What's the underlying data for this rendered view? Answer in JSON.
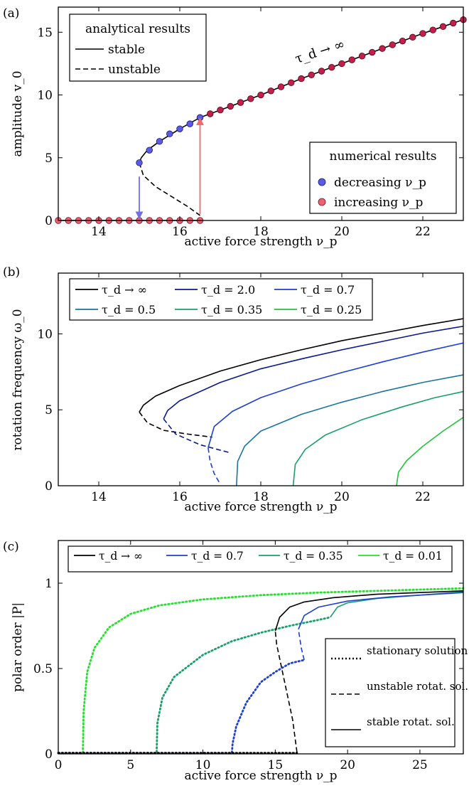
{
  "chart_data": [
    {
      "panel": "(a)",
      "type": "line",
      "xlabel": "active force strength ν_p",
      "ylabel": "amplitude v_0",
      "xlim": [
        13,
        23
      ],
      "ylim": [
        0,
        17
      ],
      "xticks": [
        14,
        16,
        18,
        20,
        22
      ],
      "yticks": [
        0,
        5,
        10,
        15
      ],
      "annotation": "τ_d → ∞",
      "legend_analytical": {
        "title": "analytical results",
        "entries": [
          "stable",
          "unstable"
        ]
      },
      "legend_numerical": {
        "title": "numerical results",
        "entries": [
          "decreasing ν_p",
          "increasing ν_p"
        ]
      },
      "colors": {
        "decreasing": "#5b5bea",
        "increasing": "#dc3c5a",
        "up_arrow": "#f26a6a",
        "down_arrow": "#7070e0"
      },
      "stable_branch": {
        "x": [
          15.0,
          15.05,
          15.2,
          15.5,
          16.0,
          16.5,
          17,
          18,
          19,
          20,
          21,
          22,
          23
        ],
        "y": [
          4.6,
          5.0,
          5.6,
          6.3,
          7.3,
          8.2,
          8.8,
          10.0,
          11.3,
          12.5,
          13.7,
          14.9,
          16.0
        ]
      },
      "unstable_branch": {
        "x": [
          15.0,
          15.1,
          15.4,
          15.8,
          16.2,
          16.5
        ],
        "y": [
          4.6,
          3.6,
          2.7,
          1.9,
          1.1,
          0.4
        ]
      },
      "zero_branch": {
        "x": [
          13.0,
          16.5
        ],
        "y": [
          0,
          0
        ]
      },
      "decreasing_points": {
        "x": [
          15.0,
          15.25,
          15.5,
          15.75,
          16.0,
          16.25,
          16.5
        ],
        "y": [
          4.6,
          5.6,
          6.3,
          6.9,
          7.3,
          7.7,
          8.2
        ]
      },
      "increasing_points_zero": {
        "x": [
          13.0,
          13.25,
          13.5,
          13.75,
          14.0,
          14.25,
          14.5,
          14.75,
          15.0,
          15.25,
          15.5,
          15.75,
          16.0,
          16.25,
          16.5
        ],
        "y": [
          0,
          0,
          0,
          0,
          0,
          0,
          0,
          0,
          0,
          0,
          0,
          0,
          0,
          0,
          0
        ]
      },
      "increasing_points_upper": {
        "x_start": 16.5,
        "x_end": 23.0,
        "step": 0.25
      },
      "arrows": [
        {
          "x": 16.5,
          "from": 0.5,
          "to": 7.9,
          "color": "up_arrow"
        },
        {
          "x": 15.0,
          "from": 3.5,
          "to": 0.4,
          "color": "down_arrow"
        }
      ]
    },
    {
      "panel": "(b)",
      "type": "line",
      "xlabel": "active force strength ν_p",
      "ylabel": "rotation frequency ω_0",
      "xlim": [
        13,
        23
      ],
      "ylim": [
        0,
        14
      ],
      "xticks": [
        14,
        16,
        18,
        20,
        22
      ],
      "yticks": [
        0,
        5,
        10
      ],
      "series": [
        {
          "label": "τ_d → ∞",
          "color": "#000000",
          "stable": {
            "x": [
              15.0,
              15.1,
              15.4,
              16,
              17,
              18,
              19,
              20,
              21,
              22,
              23
            ],
            "y": [
              4.85,
              5.3,
              5.9,
              6.6,
              7.55,
              8.3,
              8.95,
              9.55,
              10.05,
              10.55,
              11.0
            ]
          },
          "unstable": {
            "x": [
              15.0,
              15.2,
              15.6,
              16.2,
              16.8
            ],
            "y": [
              4.85,
              4.15,
              3.65,
              3.4,
              3.2
            ]
          }
        },
        {
          "label": "τ_d = 2.0",
          "color": "#0a1a8c",
          "stable": {
            "x": [
              15.6,
              15.7,
              16,
              17,
              18,
              19,
              20,
              21,
              22,
              23
            ],
            "y": [
              4.4,
              4.95,
              5.6,
              6.8,
              7.7,
              8.35,
              8.95,
              9.5,
              10.05,
              10.5
            ]
          },
          "unstable": {
            "x": [
              15.6,
              15.9,
              16.5,
              17.2
            ],
            "y": [
              4.4,
              3.4,
              2.7,
              2.2
            ]
          }
        },
        {
          "label": "τ_d = 0.7",
          "color": "#1f3fd0",
          "stable": {
            "x": [
              16.7,
              16.85,
              17.3,
              18,
              19,
              20,
              21,
              22,
              23
            ],
            "y": [
              2.5,
              3.9,
              4.9,
              5.8,
              6.7,
              7.45,
              8.15,
              8.8,
              9.4
            ]
          },
          "unstable": {
            "x": [
              16.7,
              16.75,
              16.85,
              17.0
            ],
            "y": [
              2.5,
              1.6,
              0.8,
              0.1
            ]
          }
        },
        {
          "label": "τ_d = 0.5",
          "color": "#1a74a0",
          "stable": {
            "x": [
              17.4,
              17.43,
              17.6,
              18,
              19,
              20,
              21,
              22,
              23
            ],
            "y": [
              0,
              1.6,
              2.6,
              3.6,
              4.7,
              5.5,
              6.2,
              6.8,
              7.3
            ]
          }
        },
        {
          "label": "τ_d = 0.35",
          "color": "#18a06a",
          "stable": {
            "x": [
              18.8,
              18.85,
              19.1,
              19.6,
              20.5,
              21.5,
              22.3,
              23
            ],
            "y": [
              0,
              1.4,
              2.4,
              3.35,
              4.35,
              5.2,
              5.8,
              6.2
            ]
          }
        },
        {
          "label": "τ_d = 0.25",
          "color": "#22c23a",
          "stable": {
            "x": [
              21.35,
              21.4,
              21.6,
              22,
              22.5,
              23
            ],
            "y": [
              0,
              0.9,
              1.65,
              2.6,
              3.6,
              4.5
            ]
          }
        }
      ]
    },
    {
      "panel": "(c)",
      "type": "line",
      "xlabel": "active force strength ν_p",
      "ylabel": "polar order |P|",
      "xlim": [
        0,
        28
      ],
      "ylim": [
        0,
        1.25
      ],
      "xticks": [
        0,
        5,
        10,
        15,
        20,
        25
      ],
      "yticks": [
        0,
        0.5,
        1
      ],
      "style_legend": [
        "stationary solution",
        "unstable rotat. sol.",
        "stable rotat. sol."
      ],
      "series": [
        {
          "label": "τ_d → ∞",
          "color": "#000000",
          "stationary": {
            "x": [
              0,
              16.5
            ],
            "y": [
              0.005,
              0.005
            ]
          },
          "unstable": {
            "x": [
              16.5,
              16.2,
              15.8,
              15.4,
              15.1,
              15.0
            ],
            "y": [
              0.01,
              0.2,
              0.36,
              0.52,
              0.64,
              0.72
            ]
          },
          "stable": {
            "x": [
              15.0,
              15.3,
              16,
              17,
              19,
              22,
              25,
              28
            ],
            "y": [
              0.72,
              0.8,
              0.86,
              0.89,
              0.915,
              0.935,
              0.945,
              0.955
            ]
          }
        },
        {
          "label": "τ_d = 0.7",
          "color": "#1f3fd0",
          "stationary": {
            "x": [
              0,
              12.0,
              12.05,
              12.3,
              13,
              14,
              15,
              16,
              17.0
            ],
            "y": [
              0.005,
              0.005,
              0.06,
              0.16,
              0.3,
              0.42,
              0.48,
              0.53,
              0.55
            ]
          },
          "unstable": {
            "x": [
              17.0,
              16.8,
              16.6
            ],
            "y": [
              0.55,
              0.62,
              0.73
            ]
          },
          "stable": {
            "x": [
              16.6,
              17.0,
              18,
              20,
              23,
              28
            ],
            "y": [
              0.73,
              0.81,
              0.86,
              0.895,
              0.92,
              0.945
            ]
          }
        },
        {
          "label": "τ_d = 0.35",
          "color": "#18a06a",
          "stationary": {
            "x": [
              0,
              6.8,
              6.85,
              7.2,
              8,
              10,
              12,
              14,
              16,
              18,
              18.8
            ],
            "y": [
              0.005,
              0.005,
              0.18,
              0.33,
              0.45,
              0.58,
              0.66,
              0.71,
              0.75,
              0.785,
              0.8
            ]
          },
          "stable": {
            "x": [
              18.8,
              19.3,
              20,
              22,
              25,
              28
            ],
            "y": [
              0.8,
              0.86,
              0.885,
              0.91,
              0.93,
              0.95
            ]
          }
        },
        {
          "label": "τ_d = 0.01",
          "color": "#22e22a",
          "stationary": {
            "x": [
              0,
              1.7,
              1.75,
              2.0,
              2.5,
              3.5,
              5,
              7,
              10,
              14,
              18,
              22,
              26,
              28
            ],
            "y": [
              0.005,
              0.005,
              0.25,
              0.48,
              0.62,
              0.74,
              0.82,
              0.87,
              0.905,
              0.93,
              0.945,
              0.955,
              0.965,
              0.97
            ]
          }
        }
      ]
    }
  ]
}
